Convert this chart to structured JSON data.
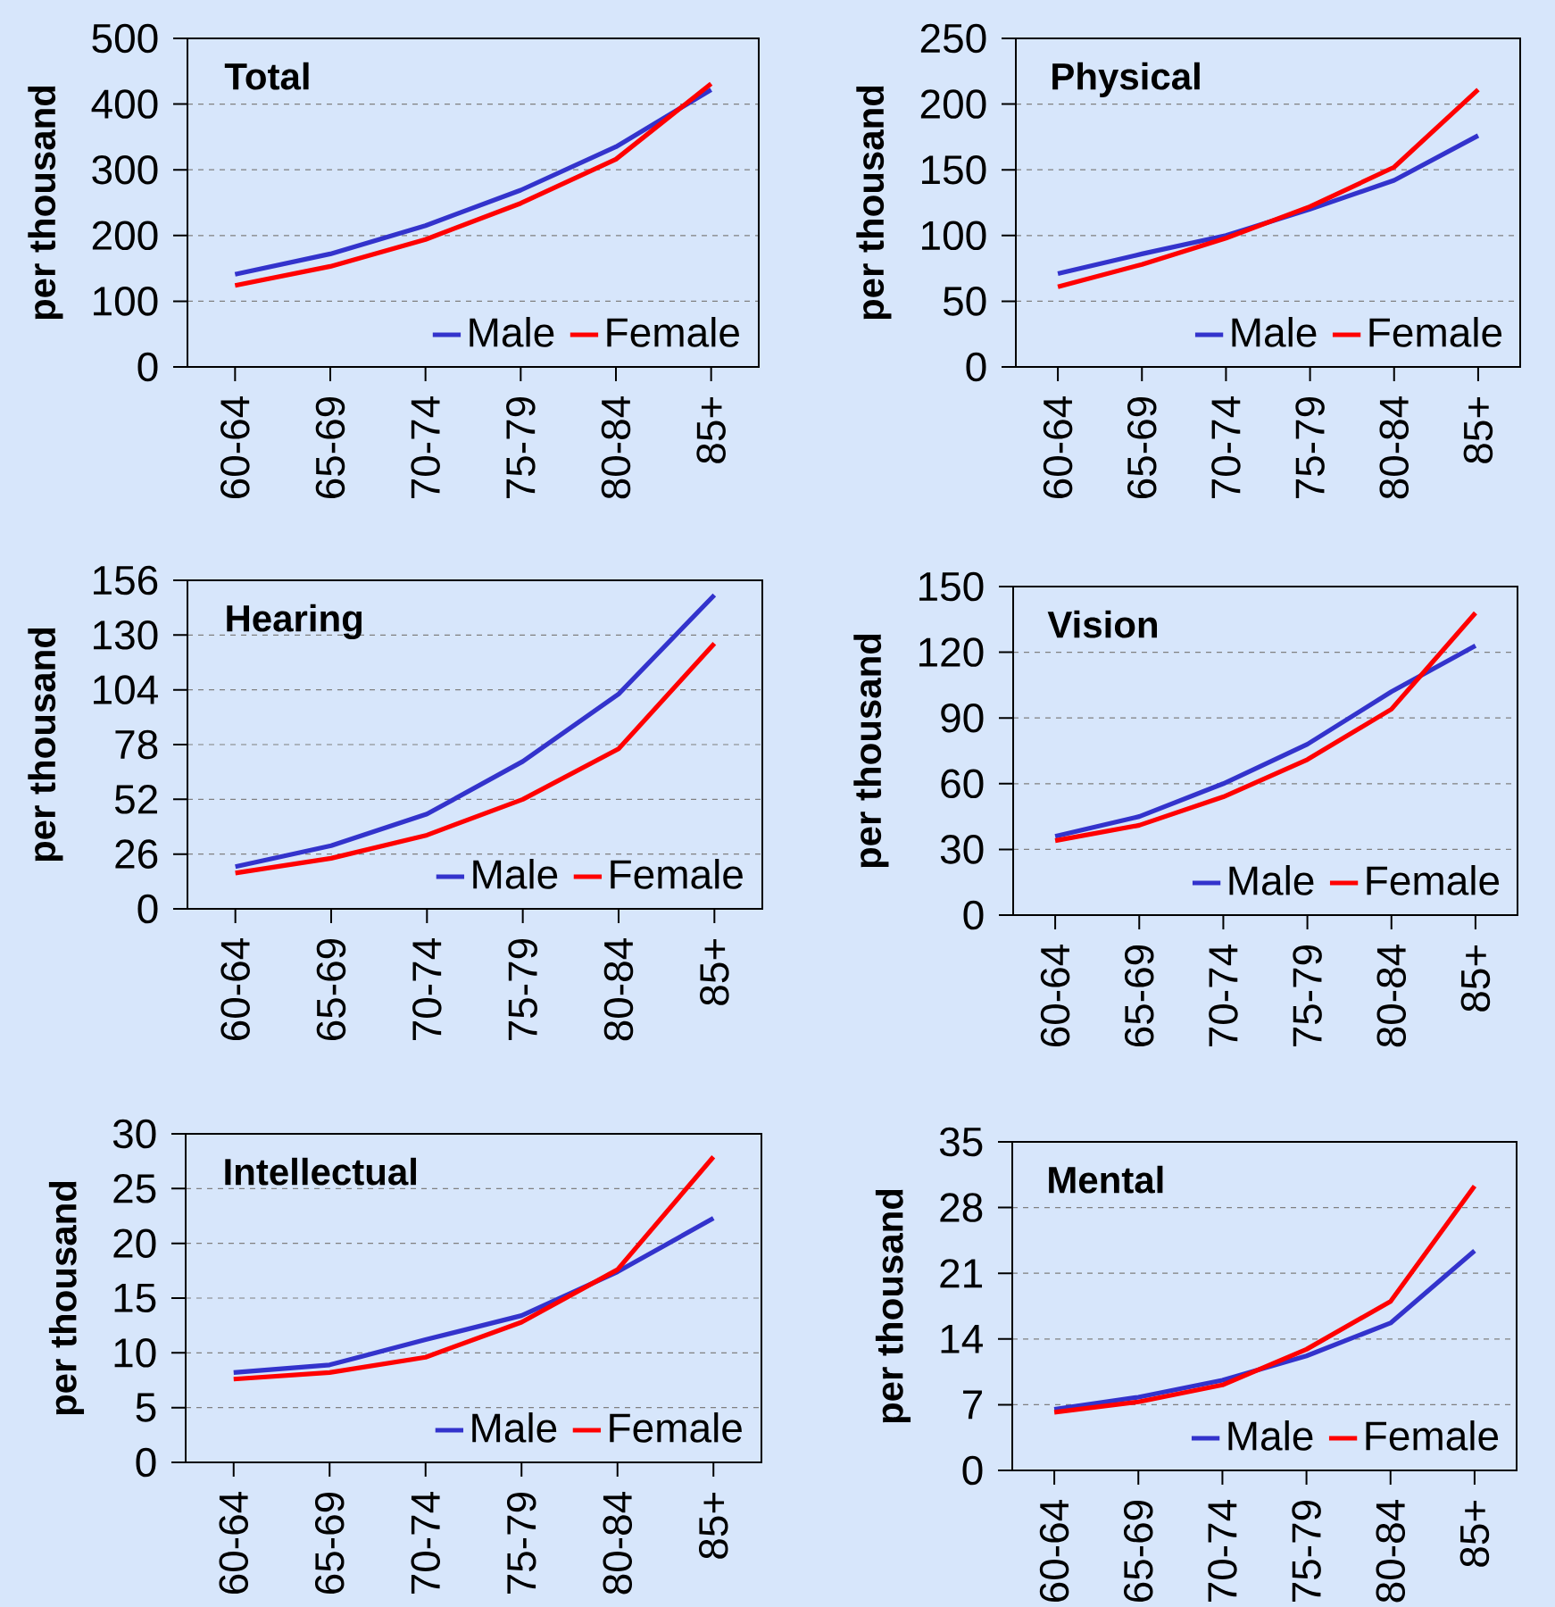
{
  "chart_data": [
    {
      "type": "line",
      "title": "Total",
      "ylabel": "per thousand",
      "categories": [
        "60-64",
        "65-69",
        "70-74",
        "75-79",
        "80-84",
        "85+"
      ],
      "ylim": [
        0,
        500
      ],
      "yticks": [
        0,
        100,
        200,
        300,
        400,
        500
      ],
      "grid": "y",
      "legend": "bottom right",
      "series": [
        {
          "name": "Male",
          "color": "#3333cc",
          "values": [
            141,
            172,
            215,
            269,
            335,
            422
          ]
        },
        {
          "name": "Female",
          "color": "#ff0000",
          "values": [
            124,
            153,
            194,
            249,
            316,
            431
          ]
        }
      ]
    },
    {
      "type": "line",
      "title": "Physical",
      "ylabel": "per thousand",
      "categories": [
        "60-64",
        "65-69",
        "70-74",
        "75-79",
        "80-84",
        "85+"
      ],
      "ylim": [
        0,
        250
      ],
      "yticks": [
        0,
        50,
        100,
        150,
        200,
        250
      ],
      "grid": "y",
      "legend": "bottom right",
      "series": [
        {
          "name": "Male",
          "color": "#3333cc",
          "values": [
            71,
            86,
            100,
            120,
            142,
            176
          ]
        },
        {
          "name": "Female",
          "color": "#ff0000",
          "values": [
            61,
            78,
            98,
            122,
            152,
            211
          ]
        }
      ]
    },
    {
      "type": "line",
      "title": "Hearing",
      "ylabel": "per thousand",
      "categories": [
        "60-64",
        "65-69",
        "70-74",
        "75-79",
        "80-84",
        "85+"
      ],
      "ylim": [
        0,
        156
      ],
      "yticks": [
        0,
        26,
        52,
        78,
        104,
        130,
        156
      ],
      "grid": "y",
      "legend": "bottom right",
      "series": [
        {
          "name": "Male",
          "color": "#3333cc",
          "values": [
            20,
            30,
            45,
            70,
            102,
            149
          ]
        },
        {
          "name": "Female",
          "color": "#ff0000",
          "values": [
            17,
            24,
            35,
            52,
            76,
            126
          ]
        }
      ]
    },
    {
      "type": "line",
      "title": "Vision",
      "ylabel": "per thousand",
      "categories": [
        "60-64",
        "65-69",
        "70-74",
        "75-79",
        "80-84",
        "85+"
      ],
      "ylim": [
        0,
        150
      ],
      "yticks": [
        0,
        30,
        60,
        90,
        120,
        150
      ],
      "grid": "y",
      "legend": "bottom right",
      "series": [
        {
          "name": "Male",
          "color": "#3333cc",
          "values": [
            36,
            45,
            60,
            78,
            102,
            123
          ]
        },
        {
          "name": "Female",
          "color": "#ff0000",
          "values": [
            34,
            41,
            54,
            71,
            94,
            138
          ]
        }
      ]
    },
    {
      "type": "line",
      "title": "Intellectual",
      "ylabel": "per thousand",
      "categories": [
        "60-64",
        "65-69",
        "70-74",
        "75-79",
        "80-84",
        "85+"
      ],
      "ylim": [
        0,
        30
      ],
      "yticks": [
        0,
        5,
        10,
        15,
        20,
        25,
        30
      ],
      "grid": "y",
      "legend": "bottom right",
      "series": [
        {
          "name": "Male",
          "color": "#3333cc",
          "values": [
            8.2,
            8.9,
            11.2,
            13.4,
            17.4,
            22.3
          ]
        },
        {
          "name": "Female",
          "color": "#ff0000",
          "values": [
            7.6,
            8.2,
            9.6,
            12.8,
            17.6,
            27.9
          ]
        }
      ]
    },
    {
      "type": "line",
      "title": "Mental",
      "ylabel": "per thousand",
      "categories": [
        "60-64",
        "65-69",
        "70-74",
        "75-79",
        "80-84",
        "85+"
      ],
      "ylim": [
        0,
        35
      ],
      "yticks": [
        0,
        7,
        14,
        21,
        28,
        35
      ],
      "grid": "y",
      "legend": "bottom right",
      "series": [
        {
          "name": "Male",
          "color": "#3333cc",
          "values": [
            6.5,
            7.8,
            9.6,
            12.2,
            15.7,
            23.4
          ]
        },
        {
          "name": "Female",
          "color": "#ff0000",
          "values": [
            6.2,
            7.3,
            9.1,
            12.9,
            18.0,
            30.3
          ]
        }
      ]
    }
  ]
}
